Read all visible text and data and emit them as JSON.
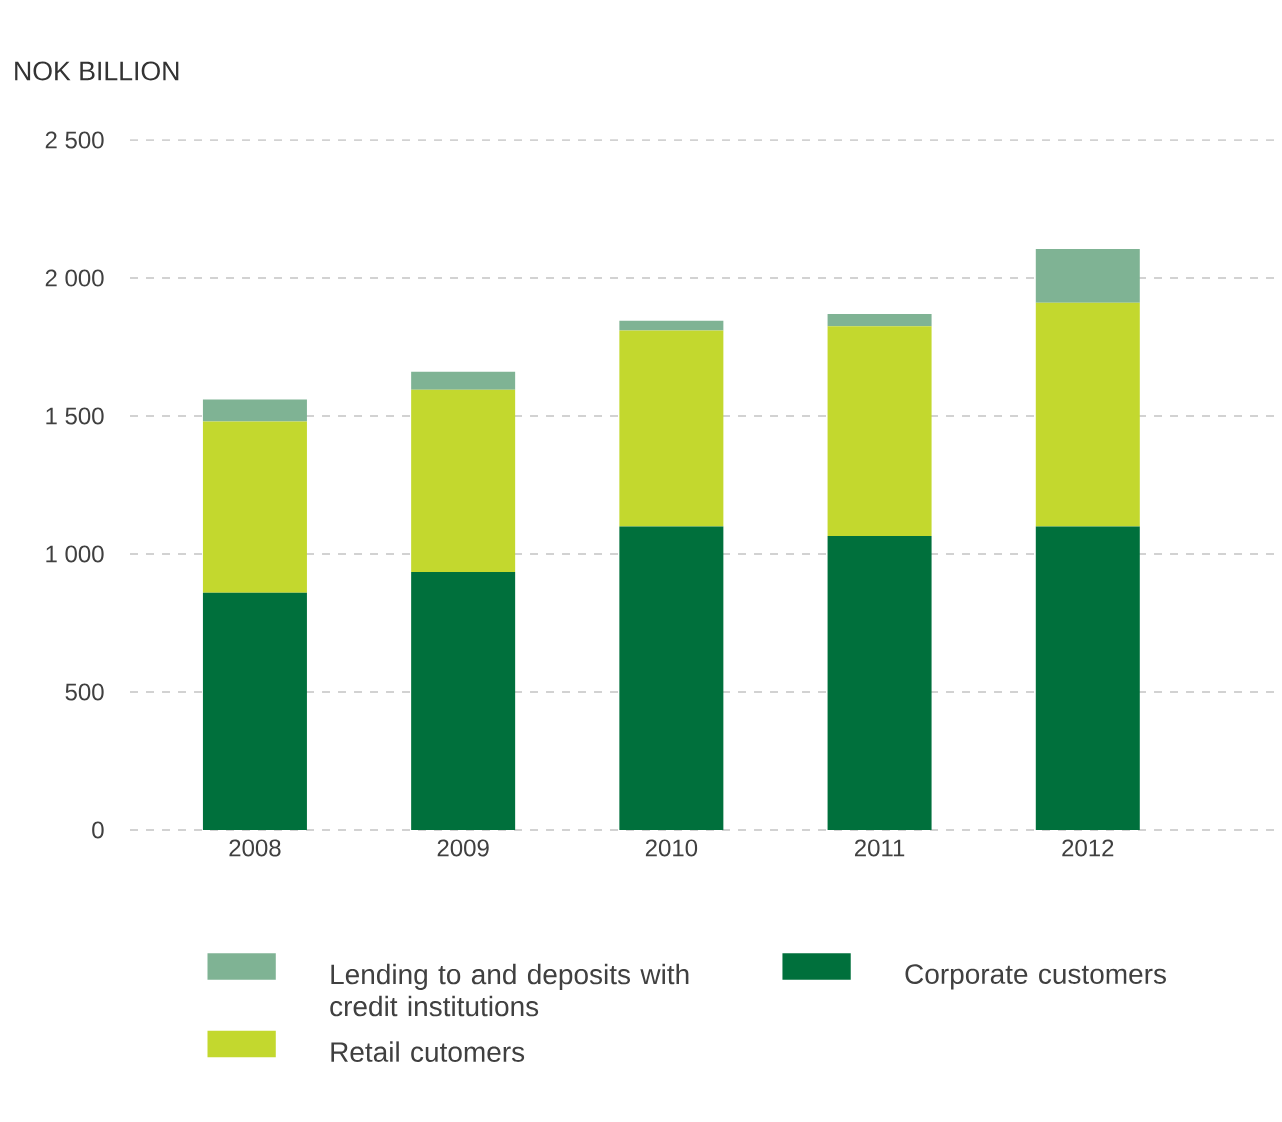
{
  "chart_data": {
    "type": "bar",
    "stacked": true,
    "ylabel": "NOK BILLION",
    "categories": [
      "2008",
      "2009",
      "2010",
      "2011",
      "2012"
    ],
    "series": [
      {
        "name": "Corporate customers",
        "color": "#00703c",
        "values": [
          860,
          935,
          1100,
          1065,
          1100
        ]
      },
      {
        "name": "Retail cutomers",
        "color": "#c3d82e",
        "values": [
          620,
          660,
          710,
          760,
          810
        ]
      },
      {
        "name": "Lending to and deposits with credit institutions",
        "color": "#7fb394",
        "values": [
          80,
          65,
          35,
          45,
          195
        ]
      }
    ],
    "ylim": [
      0,
      2500
    ],
    "yticks": [
      0,
      500,
      {
        "value": 1000,
        "label": "1 000"
      },
      {
        "value": 1500,
        "label": "1 500"
      },
      {
        "value": 2000,
        "label": "2 000"
      },
      {
        "value": 2500,
        "label": "2 500"
      }
    ],
    "grid": "y",
    "legend": "bottom"
  }
}
